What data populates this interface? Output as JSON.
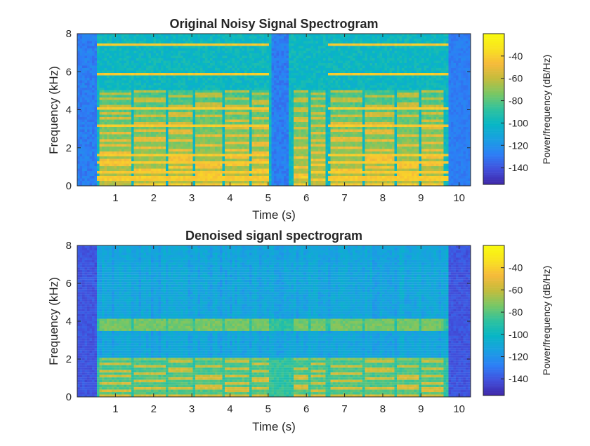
{
  "colors": {
    "cmap": [
      "#3e26a8",
      "#4150dc",
      "#2c7ff6",
      "#19a0e1",
      "#07b6c4",
      "#30c29d",
      "#79c764",
      "#c4bc3c",
      "#f6ba3a",
      "#f9e31f",
      "#f9fb0e"
    ],
    "axis": "#262626"
  },
  "chart_data": [
    {
      "type": "heatmap",
      "title": "Original Noisy Signal Spectrogram",
      "xlabel": "Time (s)",
      "ylabel": "Frequency (kHz)",
      "xlim": [
        0,
        10.3
      ],
      "ylim": [
        0,
        8
      ],
      "xticks": [
        "1",
        "2",
        "3",
        "4",
        "5",
        "6",
        "7",
        "8",
        "9",
        "10"
      ],
      "yticks": [
        "0",
        "2",
        "4",
        "6",
        "8"
      ],
      "colorbar": {
        "label": "Power/frequency (dB/Hz)",
        "range": [
          -155,
          -20
        ],
        "ticks": [
          "-40",
          "-60",
          "-80",
          "-100",
          "-120",
          "-140"
        ]
      },
      "speech_segments": [
        [
          0.55,
          1.4
        ],
        [
          1.45,
          2.3
        ],
        [
          2.35,
          3.05
        ],
        [
          3.1,
          3.8
        ],
        [
          3.85,
          4.5
        ],
        [
          4.55,
          5.0
        ],
        [
          5.65,
          6.05
        ],
        [
          6.1,
          6.5
        ],
        [
          6.65,
          7.45
        ],
        [
          7.5,
          8.3
        ],
        [
          8.35,
          8.95
        ],
        [
          9.0,
          9.6
        ]
      ],
      "silence_low": [
        [
          0,
          0.5
        ],
        [
          5.1,
          5.55
        ],
        [
          9.75,
          10.3
        ]
      ],
      "tones_khz": [
        0.4,
        0.7,
        1.2,
        1.6,
        3.2,
        4.1,
        5.9,
        7.4
      ],
      "tone_gaps": [
        [
          5.0,
          6.55
        ]
      ],
      "levels": {
        "floor": -100,
        "silence": -128,
        "speech": -62,
        "tone": -42,
        "harmonic_peak": -40
      }
    },
    {
      "type": "heatmap",
      "title": "Denoised siganl spectrogram",
      "xlabel": "Time (s)",
      "ylabel": "Frequency (kHz)",
      "xlim": [
        0,
        10.3
      ],
      "ylim": [
        0,
        8
      ],
      "xticks": [
        "1",
        "2",
        "3",
        "4",
        "5",
        "6",
        "7",
        "8",
        "9",
        "10"
      ],
      "yticks": [
        "0",
        "2",
        "4",
        "6",
        "8"
      ],
      "colorbar": {
        "label": "Power/frequency (dB/Hz)",
        "range": [
          -155,
          -20
        ],
        "ticks": [
          "-40",
          "-60",
          "-80",
          "-100",
          "-120",
          "-140"
        ]
      },
      "speech_segments": [
        [
          0.55,
          1.4
        ],
        [
          1.45,
          2.3
        ],
        [
          2.35,
          3.05
        ],
        [
          3.1,
          3.8
        ],
        [
          3.85,
          4.5
        ],
        [
          4.55,
          5.0
        ],
        [
          5.65,
          6.05
        ],
        [
          6.1,
          6.5
        ],
        [
          6.65,
          7.45
        ],
        [
          7.5,
          8.3
        ],
        [
          8.35,
          8.95
        ],
        [
          9.0,
          9.6
        ]
      ],
      "silence_low": [
        [
          0,
          0.5
        ],
        [
          9.75,
          10.3
        ]
      ],
      "passbands_khz": [
        [
          0,
          2.0
        ],
        [
          3.5,
          4.1
        ]
      ],
      "stop_floor_db": -112,
      "levels": {
        "floor": -112,
        "silence": -140,
        "speech": -55,
        "band": -88
      }
    }
  ]
}
